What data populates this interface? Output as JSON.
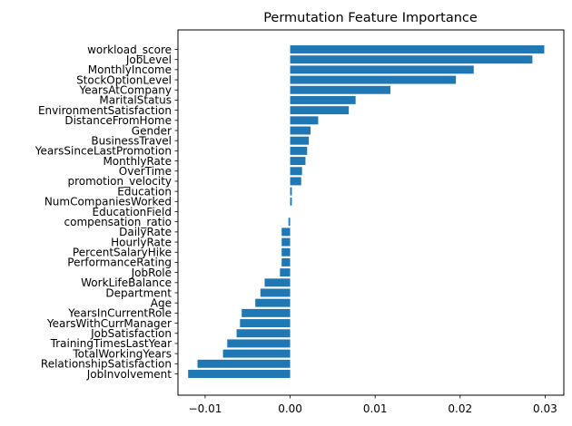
{
  "chart_data": {
    "type": "bar",
    "orientation": "horizontal",
    "title": "Permutation Feature Importance",
    "xlabel": "",
    "ylabel": "",
    "xlim": [
      -0.0132,
      0.0322
    ],
    "xticks": [
      -0.01,
      0.0,
      0.01,
      0.02,
      0.03
    ],
    "xtick_labels": [
      "−0.01",
      "0.00",
      "0.01",
      "0.02",
      "0.03"
    ],
    "grid": false,
    "bar_color": "#1f77b4",
    "categories": [
      "workload_score",
      "JobLevel",
      "MonthlyIncome",
      "StockOptionLevel",
      "YearsAtCompany",
      "MaritalStatus",
      "EnvironmentSatisfaction",
      "DistanceFromHome",
      "Gender",
      "BusinessTravel",
      "YearsSinceLastPromotion",
      "MonthlyRate",
      "OverTime",
      "promotion_velocity",
      "Education",
      "NumCompaniesWorked",
      "EducationField",
      "compensation_ratio",
      "DailyRate",
      "HourlyRate",
      "PercentSalaryHike",
      "PerformanceRating",
      "JobRole",
      "WorkLifeBalance",
      "Department",
      "Age",
      "YearsInCurrentRole",
      "YearsWithCurrManager",
      "JobSatisfaction",
      "TrainingTimesLastYear",
      "TotalWorkingYears",
      "RelationshipSatisfaction",
      "JobInvolvement"
    ],
    "values": [
      0.0299,
      0.0285,
      0.0216,
      0.0195,
      0.0118,
      0.0077,
      0.0069,
      0.0033,
      0.0024,
      0.0022,
      0.002,
      0.0018,
      0.0014,
      0.0013,
      0.0002,
      0.0002,
      0.0,
      -0.0002,
      -0.001,
      -0.001,
      -0.001,
      -0.001,
      -0.0012,
      -0.003,
      -0.0035,
      -0.0041,
      -0.0057,
      -0.0059,
      -0.0063,
      -0.0074,
      -0.0079,
      -0.0109,
      -0.012
    ]
  }
}
